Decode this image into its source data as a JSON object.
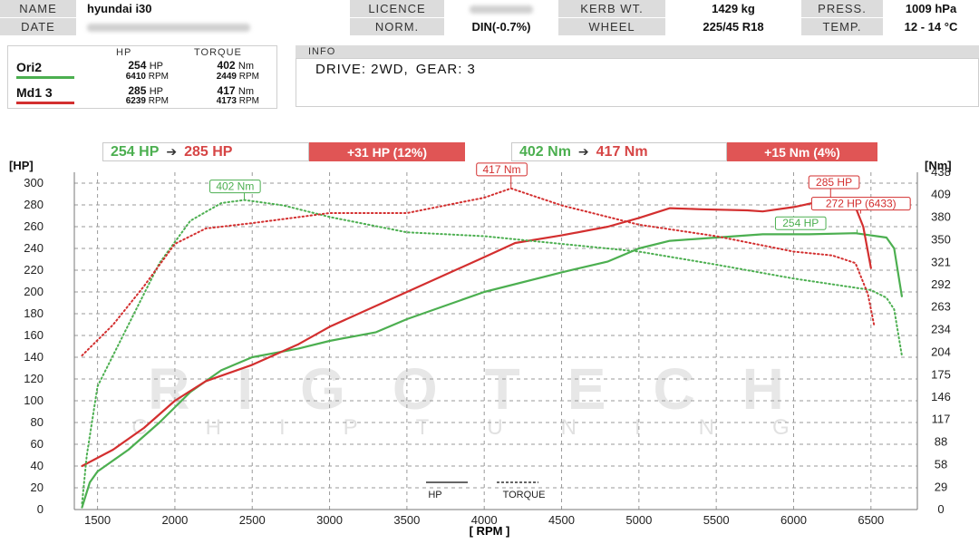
{
  "header": {
    "row1": [
      {
        "label": "NAME",
        "value": "hyundai i30"
      },
      {
        "label": "LICENCE",
        "value": ""
      },
      {
        "label": "KERB WT.",
        "value": "1429 kg"
      },
      {
        "label": "PRESS.",
        "value": "1009 hPa"
      }
    ],
    "row2": [
      {
        "label": "DATE",
        "value": ""
      },
      {
        "label": "NORM.",
        "value": "DIN(-0.7%)"
      },
      {
        "label": "WHEEL",
        "value": "225/45 R18"
      },
      {
        "label": "TEMP.",
        "value": "12 - 14 °C"
      }
    ]
  },
  "runs": {
    "col_hp": "HP",
    "col_torque": "TORQUE",
    "items": [
      {
        "name": "Ori2",
        "hp": "254",
        "hp_unit": "HP",
        "hp_rpm": "6410",
        "torque": "402",
        "torque_unit": "Nm",
        "torque_rpm": "2449",
        "rpm_unit": "RPM",
        "color": "#4caf50"
      },
      {
        "name": "Md1 3",
        "hp": "285",
        "hp_unit": "HP",
        "hp_rpm": "6239",
        "torque": "417",
        "torque_unit": "Nm",
        "torque_rpm": "4173",
        "rpm_unit": "RPM",
        "color": "#d32f2f"
      }
    ]
  },
  "info": {
    "label": "INFO",
    "drive": "DRIVE: 2WD,",
    "gear": "GEAR: 3"
  },
  "comparison": {
    "hp_from": "254 HP",
    "hp_to": "285 HP",
    "hp_delta": "+31 HP  (12%)",
    "nm_from": "402 Nm",
    "nm_to": "417 Nm",
    "nm_delta": "+15 Nm  (4%)",
    "arrow": "➔"
  },
  "watermark": {
    "main": "RIGOTECH",
    "sub": "CHIPTUNING"
  },
  "colors": {
    "green": "#4caf50",
    "red": "#d32f2f",
    "delta_bg": "#e05555"
  },
  "chart_data": {
    "type": "line",
    "xlabel": "[ RPM ]",
    "ylabel_left": "[HP]",
    "ylabel_right": "[Nm]",
    "xlim": [
      1350,
      6800
    ],
    "ylim_left": [
      0,
      310
    ],
    "ylim_right": [
      0,
      438
    ],
    "x_ticks": [
      1500,
      2000,
      2500,
      3000,
      3500,
      4000,
      4500,
      5000,
      5500,
      6000,
      6500
    ],
    "y_ticks_left": [
      0,
      20,
      40,
      60,
      80,
      100,
      120,
      140,
      160,
      180,
      200,
      220,
      240,
      260,
      280,
      300
    ],
    "y_ticks_right": [
      0,
      29,
      58,
      88,
      117,
      146,
      175,
      204,
      234,
      263,
      292,
      321,
      350,
      380,
      409,
      438
    ],
    "grid": true,
    "legend": [
      {
        "label": "HP",
        "style": "solid"
      },
      {
        "label": "TORQUE",
        "style": "dotted"
      }
    ],
    "series": [
      {
        "name": "Ori2 HP",
        "axis": "left",
        "style": "solid",
        "color": "#4caf50",
        "points": [
          [
            1400,
            2
          ],
          [
            1450,
            25
          ],
          [
            1500,
            35
          ],
          [
            1700,
            55
          ],
          [
            1900,
            80
          ],
          [
            2100,
            108
          ],
          [
            2300,
            128
          ],
          [
            2500,
            140
          ],
          [
            2800,
            148
          ],
          [
            3000,
            155
          ],
          [
            3300,
            163
          ],
          [
            3500,
            175
          ],
          [
            4000,
            200
          ],
          [
            4500,
            218
          ],
          [
            4800,
            228
          ],
          [
            5000,
            240
          ],
          [
            5200,
            247
          ],
          [
            5500,
            250
          ],
          [
            5800,
            253
          ],
          [
            6100,
            253
          ],
          [
            6400,
            254
          ],
          [
            6600,
            250
          ],
          [
            6650,
            240
          ],
          [
            6700,
            196
          ]
        ]
      },
      {
        "name": "Md1 3 HP",
        "axis": "left",
        "style": "solid",
        "color": "#d32f2f",
        "points": [
          [
            1400,
            40
          ],
          [
            1600,
            55
          ],
          [
            1800,
            75
          ],
          [
            2000,
            100
          ],
          [
            2200,
            118
          ],
          [
            2500,
            133
          ],
          [
            2800,
            152
          ],
          [
            3000,
            168
          ],
          [
            3500,
            200
          ],
          [
            4000,
            232
          ],
          [
            4200,
            245
          ],
          [
            4500,
            252
          ],
          [
            4800,
            260
          ],
          [
            5000,
            268
          ],
          [
            5200,
            277
          ],
          [
            5400,
            276
          ],
          [
            5700,
            275
          ],
          [
            5800,
            274
          ],
          [
            6000,
            278
          ],
          [
            6200,
            284
          ],
          [
            6250,
            285
          ],
          [
            6400,
            278
          ],
          [
            6450,
            260
          ],
          [
            6500,
            222
          ]
        ]
      },
      {
        "name": "Ori2 TORQUE",
        "axis": "right",
        "style": "dotted",
        "color": "#4caf50",
        "points": [
          [
            1400,
            8
          ],
          [
            1430,
            70
          ],
          [
            1500,
            160
          ],
          [
            1700,
            240
          ],
          [
            1900,
            320
          ],
          [
            2100,
            375
          ],
          [
            2300,
            398
          ],
          [
            2449,
            402
          ],
          [
            2700,
            395
          ],
          [
            3000,
            380
          ],
          [
            3500,
            360
          ],
          [
            4000,
            355
          ],
          [
            4500,
            345
          ],
          [
            5000,
            335
          ],
          [
            5500,
            318
          ],
          [
            6000,
            300
          ],
          [
            6500,
            285
          ],
          [
            6600,
            275
          ],
          [
            6650,
            260
          ],
          [
            6700,
            200
          ]
        ]
      },
      {
        "name": "Md1 3 TORQUE",
        "axis": "right",
        "style": "dotted",
        "color": "#d32f2f",
        "points": [
          [
            1400,
            200
          ],
          [
            1600,
            240
          ],
          [
            1800,
            290
          ],
          [
            2000,
            345
          ],
          [
            2200,
            365
          ],
          [
            2500,
            372
          ],
          [
            3000,
            385
          ],
          [
            3500,
            385
          ],
          [
            4000,
            405
          ],
          [
            4173,
            417
          ],
          [
            4500,
            395
          ],
          [
            5000,
            370
          ],
          [
            5500,
            355
          ],
          [
            6000,
            335
          ],
          [
            6250,
            330
          ],
          [
            6400,
            320
          ],
          [
            6480,
            280
          ],
          [
            6520,
            240
          ]
        ]
      }
    ],
    "annotations": [
      {
        "text": "402 Nm",
        "x": 2449,
        "y": 402,
        "axis": "right",
        "color": "#4caf50"
      },
      {
        "text": "417 Nm",
        "x": 4173,
        "y": 417,
        "axis": "right",
        "color": "#d32f2f"
      },
      {
        "text": "285 HP",
        "x": 6239,
        "y": 285,
        "axis": "left",
        "color": "#d32f2f"
      },
      {
        "text": "272 HP (6433)",
        "x": 6433,
        "y": 272,
        "axis": "left",
        "color": "#d32f2f"
      },
      {
        "text": "254 HP",
        "x": 6410,
        "y": 254,
        "axis": "left",
        "color": "#4caf50"
      }
    ]
  }
}
